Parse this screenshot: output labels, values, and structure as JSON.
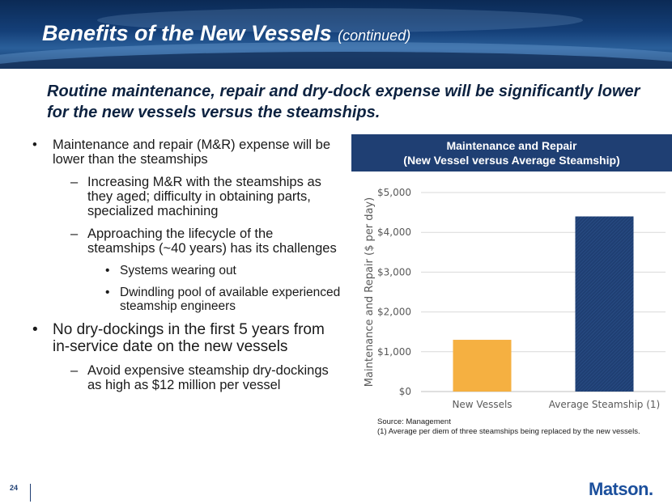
{
  "header": {
    "title": "Benefits of the New Vessels",
    "title_suffix": "(continued)"
  },
  "headline": "Routine maintenance, repair and dry-dock expense will be significantly lower for the new vessels versus the steamships.",
  "bullets": [
    {
      "level": 1,
      "text": "Maintenance and repair (M&R) expense will be lower than the steamships"
    },
    {
      "level": 2,
      "text": "Increasing M&R with the steamships as they aged; difficulty in obtaining parts, specialized machining"
    },
    {
      "level": 2,
      "text": "Approaching the lifecycle of the steamships (~40 years) has its challenges"
    },
    {
      "level": 3,
      "text": "Systems wearing out"
    },
    {
      "level": 3,
      "text": "Dwindling pool of available experienced steamship engineers"
    },
    {
      "level": 1,
      "text": "No dry-dockings in the first 5 years from in-service date on the new vessels",
      "big": true
    },
    {
      "level": 2,
      "text": "Avoid expensive steamship dry-dockings as high as $12 million per vessel"
    }
  ],
  "chart_header": {
    "line1": "Maintenance and Repair",
    "line2": "(New Vessel versus Average Steamship)"
  },
  "chart_data": {
    "type": "bar",
    "categories": [
      "New Vessels",
      "Average Steamship (1)"
    ],
    "values": [
      1300,
      4400
    ],
    "colors": [
      "#f5b041",
      "#1f3f73"
    ],
    "ylabel": "Maintenance and Repair ($ per day)",
    "ylim": [
      0,
      5000
    ],
    "yticks": [
      0,
      1000,
      2000,
      3000,
      4000,
      5000
    ],
    "ytick_labels": [
      "$0",
      "$1,000",
      "$2,000",
      "$3,000",
      "$4,000",
      "$5,000"
    ],
    "grid": true
  },
  "footnote": {
    "source": "Source: Management",
    "note": "(1)  Average per diem of three steamships being replaced by the new vessels."
  },
  "page_number": "24",
  "logo": "Matson."
}
